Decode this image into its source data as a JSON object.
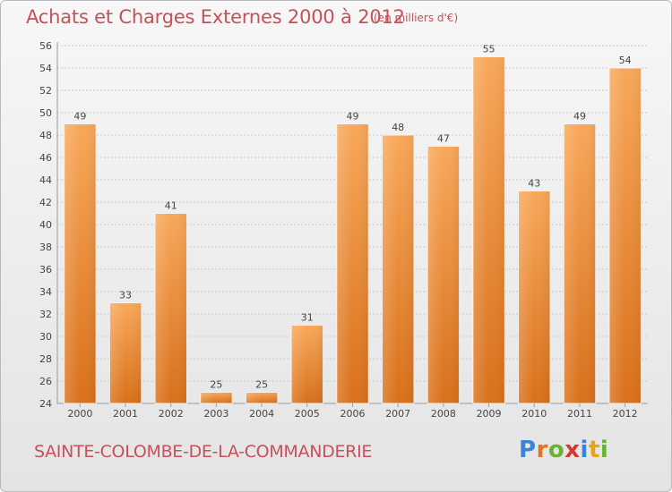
{
  "header": {
    "title": "Achats et Charges Externes 2000 à 2012",
    "subtitle": "(en milliers d'€)"
  },
  "footer": {
    "commune": "SAINTE-COLOMBE-DE-LA-COMMANDERIE",
    "brand": "Proxiti",
    "brand_letters": [
      {
        "char": "P",
        "color": "#3a86d6"
      },
      {
        "char": "r",
        "color": "#e8731e"
      },
      {
        "char": "o",
        "color": "#6ab42d"
      },
      {
        "char": "x",
        "color": "#d23a2e"
      },
      {
        "char": "i",
        "color": "#3a86d6"
      },
      {
        "char": "t",
        "color": "#e8a21e"
      },
      {
        "char": "i",
        "color": "#6ab42d"
      }
    ]
  },
  "colors": {
    "accent": "#c8505a",
    "bar_light": "#f8a85a",
    "bar_dark": "#d9701a",
    "grid": "#c9c9c9"
  },
  "chart_data": {
    "type": "bar",
    "title": "Achats et Charges Externes 2000 à 2012",
    "subtitle": "(en milliers d'€)",
    "xlabel": "",
    "ylabel": "",
    "categories": [
      "2000",
      "2001",
      "2002",
      "2003",
      "2004",
      "2005",
      "2006",
      "2007",
      "2008",
      "2009",
      "2010",
      "2011",
      "2012"
    ],
    "values": [
      49,
      33,
      41,
      25,
      25,
      31,
      49,
      48,
      47,
      55,
      43,
      49,
      54
    ],
    "ylim": [
      24,
      56
    ],
    "yticks": [
      24,
      26,
      28,
      30,
      32,
      34,
      36,
      38,
      40,
      42,
      44,
      46,
      48,
      50,
      52,
      54,
      56
    ],
    "grid": true,
    "data_labels": true
  }
}
